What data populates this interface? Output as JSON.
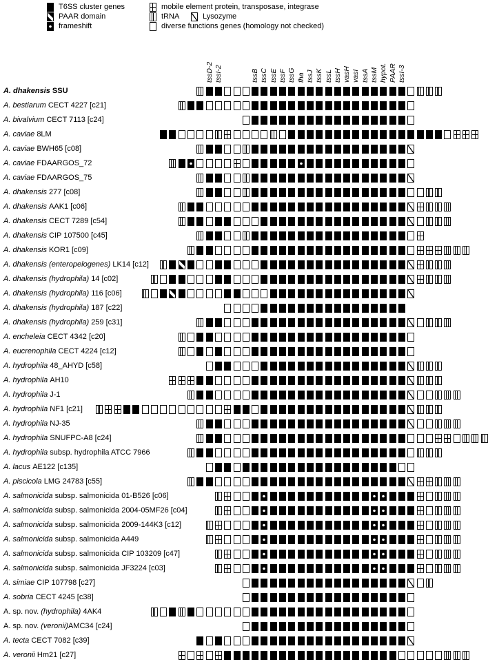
{
  "legend": {
    "left": [
      {
        "icon": "t6ss-cluster-gene",
        "label": "T6SS cluster genes"
      },
      {
        "icon": "paar-domain",
        "label": "PAAR domain"
      },
      {
        "icon": "frameshift",
        "label": "frameshift"
      }
    ],
    "right": [
      {
        "icon": "mobile-element",
        "label": "mobile element protein, transposase, integrase"
      },
      {
        "icon": "trna",
        "label": "tRNA"
      },
      {
        "icon": "lysozyme",
        "label": "Lysozyme"
      },
      {
        "icon": "diverse-functions",
        "label": "diverse functions genes (homology not checked)"
      }
    ]
  },
  "symbol_codes": {
    "F": "t6ss-gene",
    "P": "paar-domain",
    "D": "frameshift",
    "M": "mobile-element",
    "T": "tRNA",
    "L": "lysozyme",
    "O": "diverse-function"
  },
  "grid": {
    "columns": 43,
    "headers": [
      {
        "col": 12,
        "text": "tssD-2"
      },
      {
        "col": 13,
        "text": "tssI-2"
      },
      {
        "col": 17,
        "text": "tssB"
      },
      {
        "col": 18,
        "text": "tssC"
      },
      {
        "col": 19,
        "text": "tssE"
      },
      {
        "col": 20,
        "text": "tssF"
      },
      {
        "col": 21,
        "text": "tssG"
      },
      {
        "col": 22,
        "text": "fha"
      },
      {
        "col": 23,
        "text": "tssJ"
      },
      {
        "col": 24,
        "text": "tssK"
      },
      {
        "col": 25,
        "text": "tssL"
      },
      {
        "col": 26,
        "text": "tssH"
      },
      {
        "col": 27,
        "text": "vasH"
      },
      {
        "col": 28,
        "text": "vasI"
      },
      {
        "col": 29,
        "text": "tssA"
      },
      {
        "col": 30,
        "text": "tssM"
      },
      {
        "col": 31,
        "text": "hypot."
      },
      {
        "col": 32,
        "text": "PAAR"
      },
      {
        "col": 33,
        "text": "tssI-3"
      }
    ]
  },
  "rows": [
    {
      "bold": true,
      "label": [
        {
          "t": "A. dhakensis ",
          "i": true
        },
        {
          "t": "SSU",
          "i": false
        }
      ],
      "start": 11,
      "seq": "TFFOOOFFFFFFFFFFFFFFFFFOTTT"
    },
    {
      "bold": false,
      "label": [
        {
          "t": "A. bestiarum ",
          "i": true
        },
        {
          "t": "CECT 4227 [c21]",
          "i": false
        }
      ],
      "start": 9,
      "seq": "TFFOOOOOFFFFFFFFFFFFFFFFFO"
    },
    {
      "bold": false,
      "label": [
        {
          "t": "A. bivalvium ",
          "i": true
        },
        {
          "t": "CECT 7113 [c24]",
          "i": false
        }
      ],
      "start": 16,
      "seq": "OFFFFFFFFFFFFFFFFFO"
    },
    {
      "bold": false,
      "label": [
        {
          "t": "A. caviae ",
          "i": true
        },
        {
          "t": "8LM",
          "i": false
        }
      ],
      "start": 7,
      "seq": "FFOOOOTMOOOOTOFFFFFFFFFFFFFFFFFOMMM"
    },
    {
      "bold": false,
      "label": [
        {
          "t": "A. caviae ",
          "i": true
        },
        {
          "t": "BWH65 [c08]",
          "i": false
        }
      ],
      "start": 11,
      "seq": "TFFOOTFFFFFFFFFFFFFFFFFL"
    },
    {
      "bold": false,
      "label": [
        {
          "t": "A. caviae ",
          "i": true
        },
        {
          "t": "FDAARGOS_72",
          "i": false
        }
      ],
      "start": 8,
      "seq": "TFDOOOOMOFFFFFDFFFFFFFFFFFO"
    },
    {
      "bold": false,
      "label": [
        {
          "t": "A. caviae ",
          "i": true
        },
        {
          "t": "FDAARGOS_75",
          "i": false
        }
      ],
      "start": 11,
      "seq": "TFFOOTFFFFFFFFFFFFFFFFFL"
    },
    {
      "bold": false,
      "label": [
        {
          "t": "A. dhakensis ",
          "i": true
        },
        {
          "t": "277 [c08]",
          "i": false
        }
      ],
      "start": 11,
      "seq": "TFFOOTFFFFFFFFFFFFFFFFFOOTT"
    },
    {
      "bold": false,
      "label": [
        {
          "t": "A. dhakensis ",
          "i": true
        },
        {
          "t": "AAK1 [c06]",
          "i": false
        }
      ],
      "start": 9,
      "seq": "TFFOOOOOFFFFFFFFFFFFFFFFFLMTTT"
    },
    {
      "bold": false,
      "label": [
        {
          "t": "A. dhakensis ",
          "i": true
        },
        {
          "t": "CECT 7289 [c54]",
          "i": false
        }
      ],
      "start": 9,
      "seq": "TFFOFFOOOFFFFFFFFFFFFFFFFLOTTT"
    },
    {
      "bold": false,
      "label": [
        {
          "t": "A. dhakensis ",
          "i": true
        },
        {
          "t": "CIP 107500 [c45]",
          "i": false
        }
      ],
      "start": 11,
      "seq": "TFFOOTFFFFFFFFFFFFFFFFFOM"
    },
    {
      "bold": false,
      "label": [
        {
          "t": "A. dhakensis ",
          "i": true
        },
        {
          "t": "KOR1 [c09]",
          "i": false
        }
      ],
      "start": 10,
      "seq": "TFFOOOOFFFFFFFFFFFFFFFFFOMMMTTT"
    },
    {
      "bold": false,
      "label": [
        {
          "t": "A. dhakensis (enteropelogenes) ",
          "i": true
        },
        {
          "t": "LK14 [c12]",
          "i": false
        }
      ],
      "start": 7,
      "seq": "TFPFOOFFOOOFFFFFFFFFFFFFFFFLMTTT"
    },
    {
      "bold": false,
      "label": [
        {
          "t": "A. dhakensis (hydrophila) ",
          "i": true
        },
        {
          "t": "14 [c02]",
          "i": false
        }
      ],
      "start": 6,
      "seq": "TOFFOOOFFOOOFFFFFFFFFFFFFFFFLMTTT"
    },
    {
      "bold": false,
      "label": [
        {
          "t": "A. dhakensis (hydrophila) ",
          "i": true
        },
        {
          "t": "116 [c06]",
          "i": false
        }
      ],
      "start": 5,
      "seq": "TOFPFOOOOFFOOOFFFFFFFFFFFFFFFL"
    },
    {
      "bold": false,
      "label": [
        {
          "t": "A. dhakensis (hydrophila) ",
          "i": true
        },
        {
          "t": "187 [c22]",
          "i": false
        }
      ],
      "start": 14,
      "seq": "OOOOFFFFFFFFFFFFFFFF"
    },
    {
      "bold": false,
      "label": [
        {
          "t": "A. dhakensis (hydrophila) ",
          "i": true
        },
        {
          "t": "259 [c31]",
          "i": false
        }
      ],
      "start": 11,
      "seq": "TFFOOOFFFFFFFFFFFFFFFFFLOTTT"
    },
    {
      "bold": false,
      "label": [
        {
          "t": "A. encheleia ",
          "i": true
        },
        {
          "t": "CECT 4342 [c20]",
          "i": false
        }
      ],
      "start": 9,
      "seq": "TOFFOOOOFFFFFFFFFFFFFFFFFO"
    },
    {
      "bold": false,
      "label": [
        {
          "t": "A. eucrenophila ",
          "i": true
        },
        {
          "t": "CECT 4224 [c12]",
          "i": false
        }
      ],
      "start": 9,
      "seq": "TOFOFOOOFFFFFFFFFFFFFFFFFO"
    },
    {
      "bold": false,
      "label": [
        {
          "t": "A. hydrophila ",
          "i": true
        },
        {
          "t": "48_AHYD [c58]",
          "i": false
        }
      ],
      "start": 12,
      "seq": "OFFOOOFFFFFFFFFFFFFFFFLTTT"
    },
    {
      "bold": false,
      "label": [
        {
          "t": "A. hydrophila ",
          "i": true
        },
        {
          "t": "AH10",
          "i": false
        }
      ],
      "start": 8,
      "seq": "MMMFFOOOOFFFFFFFFFFFFFFFFFLTTT"
    },
    {
      "bold": false,
      "label": [
        {
          "t": "A. hydrophila ",
          "i": true
        },
        {
          "t": "J-1",
          "i": false
        }
      ],
      "start": 10,
      "seq": "TFFOOOOFFFFFFFFFFFFFFFFFLOOTTT"
    },
    {
      "bold": false,
      "label": [
        {
          "t": "A. hydrophila ",
          "i": true
        },
        {
          "t": "NF1 [c21]",
          "i": false
        }
      ],
      "start": 0,
      "seq": "TMMFFOOOOOOOOOMFFOFFFFFFFFFFFFFFFFLTTT"
    },
    {
      "bold": false,
      "label": [
        {
          "t": "A. hydrophila ",
          "i": true
        },
        {
          "t": "NJ-35",
          "i": false
        }
      ],
      "start": 11,
      "seq": "TFFOOOFFFFFFFFFFFFFFFFFLOOTTT"
    },
    {
      "bold": false,
      "label": [
        {
          "t": "A. hydrophila ",
          "i": true
        },
        {
          "t": "SNUFPC-A8 [c24]",
          "i": false
        }
      ],
      "start": 11,
      "seq": "TFFOOOFFFFFFFFFFFFFFFFFOOOMMOTTT"
    },
    {
      "bold": false,
      "label": [
        {
          "t": "A. hydrophila ",
          "i": true
        },
        {
          "t": "subsp. hydrophila ATCC 7966",
          "i": false
        }
      ],
      "start": 10,
      "seq": "TFFOOOOFFFFFFFFFFFFFFFFFOTTT"
    },
    {
      "bold": false,
      "label": [
        {
          "t": "A. lacus ",
          "i": true
        },
        {
          "t": "AE122 [c135]",
          "i": false
        }
      ],
      "start": 12,
      "seq": "OFFOFFFFFFFFFFFFFFFFFOO"
    },
    {
      "bold": false,
      "label": [
        {
          "t": "A. piscicola ",
          "i": true
        },
        {
          "t": "LMG 24783 [c55]",
          "i": false
        }
      ],
      "start": 10,
      "seq": "TFFOOOOFFFFFFFFFFFFFFFFFLMMTTT"
    },
    {
      "bold": false,
      "label": [
        {
          "t": "A. salmonicida ",
          "i": true
        },
        {
          "t": "subsp. salmonicida 01-B526 [c06]",
          "i": false
        }
      ],
      "start": 13,
      "seq": "TMOOFDFFFFFFFFFFFDDFFFMOTTT"
    },
    {
      "bold": false,
      "label": [
        {
          "t": "A. salmonicida ",
          "i": true
        },
        {
          "t": "subsp. salmonicida 2004-05MF26 [c04]",
          "i": false
        }
      ],
      "start": 13,
      "seq": "TMOOFDFFFFFFFFFFFDDFFFMOTTT"
    },
    {
      "bold": false,
      "label": [
        {
          "t": "A. salmonicida ",
          "i": true
        },
        {
          "t": "subsp. salmonicida 2009-144K3 [c12]",
          "i": false
        }
      ],
      "start": 12,
      "seq": "TMOOOFDFFFFFFFFFFFDDFFFMOTTT"
    },
    {
      "bold": false,
      "label": [
        {
          "t": "A. salmonicida ",
          "i": true
        },
        {
          "t": "subsp. salmonicida A449",
          "i": false
        }
      ],
      "start": 12,
      "seq": "TMOOOFDFFFFFFFFFFFDDFFFMOTTT"
    },
    {
      "bold": false,
      "label": [
        {
          "t": "A. salmonicida ",
          "i": true
        },
        {
          "t": "subsp. salmonicida CIP 103209 [c47]",
          "i": false
        }
      ],
      "start": 13,
      "seq": "TMOOFDFFFFFFFFFFFDDFFFMOTTT"
    },
    {
      "bold": false,
      "label": [
        {
          "t": "A. salmonicida ",
          "i": true
        },
        {
          "t": "subsp. salmonicida JF3224 [c03]",
          "i": false
        }
      ],
      "start": 13,
      "seq": "TMOOFDFFFFFFFFFFFDDFFFMOTTT"
    },
    {
      "bold": false,
      "label": [
        {
          "t": "A. simiae ",
          "i": true
        },
        {
          "t": "CIP 107798 [c27]",
          "i": false
        }
      ],
      "start": 16,
      "seq": "OFFFFFFFFFFFFFFFFFLOT"
    },
    {
      "bold": false,
      "label": [
        {
          "t": "A. sobria ",
          "i": true
        },
        {
          "t": "CECT 4245 [c38]",
          "i": false
        }
      ],
      "start": 16,
      "seq": "OFFFFFFFFFFFFFFFFFO"
    },
    {
      "bold": false,
      "label": [
        {
          "t": "A. sp. nov. ",
          "i": false
        },
        {
          "t": "(hydrophila) ",
          "i": true
        },
        {
          "t": "4AK4",
          "i": false
        }
      ],
      "start": 6,
      "seq": "TOFTFOOOOOOFFFFFFFFFFFFFFFFFO"
    },
    {
      "bold": false,
      "label": [
        {
          "t": "A. sp. nov. ",
          "i": false
        },
        {
          "t": "(veronii)",
          "i": true
        },
        {
          "t": "AMC34 [c24]",
          "i": false
        }
      ],
      "start": 16,
      "seq": "OFFFFFFFFFFFFFFFFFO"
    },
    {
      "bold": false,
      "label": [
        {
          "t": "A. tecta ",
          "i": true
        },
        {
          "t": "CECT 7082 [c39]",
          "i": false
        }
      ],
      "start": 11,
      "seq": "FOFOOOFFFFFFFFFFFFFFFFFL"
    },
    {
      "bold": false,
      "label": [
        {
          "t": "A. veronii ",
          "i": true
        },
        {
          "t": "Hm21 [c27]",
          "i": false
        }
      ],
      "start": 9,
      "seq": "MOMOMFFFFFFFFFFFFFFFFFFFOOOOOTTT"
    }
  ]
}
